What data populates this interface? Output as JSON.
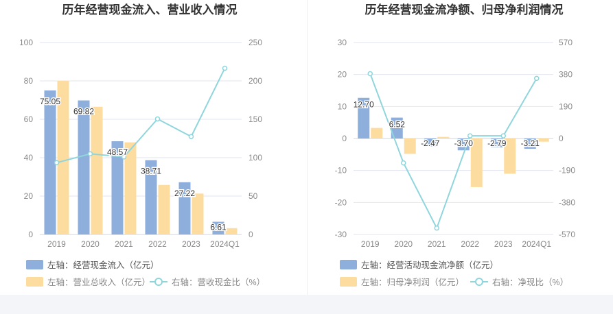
{
  "chart_data": [
    {
      "type": "bar",
      "title": "历年经营现金流入、营业收入情况",
      "categories": [
        "2019",
        "2020",
        "2021",
        "2022",
        "2023",
        "2024Q1"
      ],
      "left_axis": {
        "ticks": [
          "0",
          "20",
          "40",
          "60",
          "80",
          "100"
        ],
        "min": 0,
        "max": 100
      },
      "right_axis": {
        "ticks": [
          "0",
          "50",
          "100",
          "150",
          "200",
          "250"
        ],
        "min": 0,
        "max": 250
      },
      "series": [
        {
          "name": "左轴：经营现金流入（亿元）",
          "kind": "bar",
          "axis": "left",
          "color": "#8eaedc",
          "values": [
            75.05,
            69.82,
            48.57,
            38.71,
            27.22,
            6.61
          ],
          "labels": [
            "75.05",
            "69.82",
            "48.57",
            "38.71",
            "27.22",
            "6.61"
          ]
        },
        {
          "name": "左轴：营业总收入（亿元）",
          "kind": "bar",
          "axis": "left",
          "color": "#fddca0",
          "values": [
            80,
            66.5,
            48,
            25.8,
            21.3,
            3.3
          ]
        },
        {
          "name": "右轴：营收现金比（%）",
          "kind": "line",
          "axis": "right",
          "color": "#8fd6dc",
          "values": [
            93.5,
            105,
            101,
            150.5,
            127.5,
            216.5
          ]
        }
      ]
    },
    {
      "type": "bar",
      "title": "历年经营现金流净额、归母净利润情况",
      "categories": [
        "2019",
        "2020",
        "2021",
        "2022",
        "2023",
        "2024Q1"
      ],
      "left_axis": {
        "ticks": [
          "-30",
          "-20",
          "-10",
          "0",
          "10",
          "20",
          "30"
        ],
        "min": -30,
        "max": 30
      },
      "right_axis": {
        "ticks": [
          "-570",
          "-380",
          "-190",
          "0",
          "190",
          "380",
          "570"
        ],
        "min": -570,
        "max": 570
      },
      "series": [
        {
          "name": "左轴：经营活动现金流净额（亿元）",
          "kind": "bar",
          "axis": "left",
          "color": "#8eaedc",
          "values": [
            12.7,
            6.52,
            -2.47,
            -3.7,
            -2.79,
            -3.21
          ],
          "labels": [
            "12.70",
            "6.52",
            "-2.47",
            "-3.70",
            "-2.79",
            "-3.21"
          ]
        },
        {
          "name": "左轴：归母净利润（亿元）",
          "kind": "bar",
          "axis": "left",
          "color": "#fddca0",
          "values": [
            3.3,
            -4.8,
            0.5,
            -15.2,
            -11,
            -1
          ]
        },
        {
          "name": "右轴：净现比（%）",
          "kind": "line",
          "axis": "right",
          "color": "#8fd6dc",
          "values": [
            385,
            -145,
            -532,
            16,
            16,
            357
          ]
        }
      ]
    }
  ]
}
